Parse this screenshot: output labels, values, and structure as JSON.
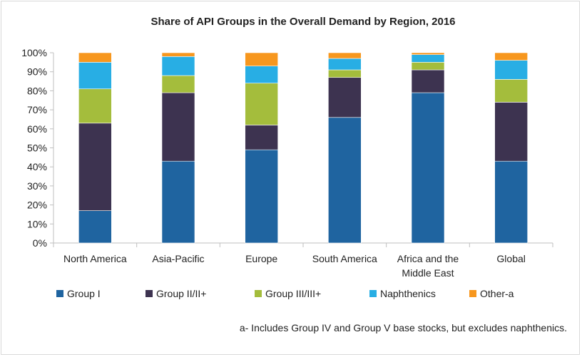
{
  "chart_data": {
    "type": "bar",
    "stacked": true,
    "title": "Share of API Groups in the Overall Demand by Region, 2016",
    "categories": [
      [
        "North America"
      ],
      [
        "Asia-Pacific"
      ],
      [
        "Europe"
      ],
      [
        "South America"
      ],
      [
        "Africa and the",
        "Middle East"
      ],
      [
        "Global"
      ]
    ],
    "series": [
      {
        "name": "Group I",
        "color": "#1f64a0",
        "values": [
          17,
          43,
          49,
          66,
          79,
          43
        ]
      },
      {
        "name": "Group II/II+",
        "color": "#3d3350",
        "values": [
          46,
          36,
          13,
          21,
          12,
          31
        ]
      },
      {
        "name": "Group III/III+",
        "color": "#a4bd3c",
        "values": [
          18,
          9,
          22,
          4,
          4,
          12
        ]
      },
      {
        "name": "Naphthenics",
        "color": "#28aee4",
        "values": [
          14,
          10,
          9,
          6,
          4,
          10
        ]
      },
      {
        "name": "Other-a",
        "color": "#f7971e",
        "values": [
          5,
          2,
          7,
          3,
          1,
          4
        ]
      }
    ],
    "ylim": [
      0,
      100
    ],
    "yticks": [
      "0%",
      "10%",
      "20%",
      "30%",
      "40%",
      "50%",
      "60%",
      "70%",
      "80%",
      "90%",
      "100%"
    ],
    "grid": false,
    "legend_position": "bottom",
    "footnote": "a- Includes Group IV and Group V base stocks, but excludes naphthenics."
  }
}
